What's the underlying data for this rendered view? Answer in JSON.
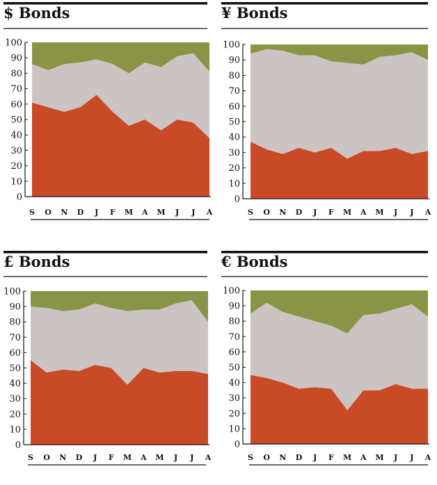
{
  "colors": {
    "series_red": "#c94a27",
    "series_grey": "#cbc4c2",
    "series_green": "#899447",
    "ink": "#111111"
  },
  "chart_data": [
    {
      "type": "area",
      "stacked": true,
      "title": "$ Bonds",
      "categories": [
        "S",
        "O",
        "N",
        "D",
        "J",
        "F",
        "M",
        "A",
        "M",
        "J",
        "J",
        "A"
      ],
      "ylim": [
        0,
        100
      ],
      "yticks": [
        0,
        10,
        20,
        30,
        40,
        50,
        60,
        70,
        80,
        90,
        100
      ],
      "xlabel": "",
      "ylabel": "",
      "grid": false,
      "legend": "none",
      "series": [
        {
          "name": "red",
          "values": [
            61,
            58,
            55,
            58,
            66,
            55,
            46,
            50,
            43,
            50,
            48,
            38
          ]
        },
        {
          "name": "grey",
          "values": [
            25,
            24,
            31,
            29,
            23,
            31,
            34,
            37,
            41,
            41,
            45,
            43
          ]
        },
        {
          "name": "green",
          "values": [
            14,
            18,
            14,
            13,
            11,
            14,
            20,
            13,
            16,
            9,
            7,
            19
          ]
        }
      ]
    },
    {
      "type": "area",
      "stacked": true,
      "title": "¥ Bonds",
      "categories": [
        "S",
        "O",
        "N",
        "D",
        "J",
        "F",
        "M",
        "A",
        "M",
        "J",
        "J",
        "A"
      ],
      "ylim": [
        0,
        100
      ],
      "yticks": [
        0,
        10,
        20,
        30,
        40,
        50,
        60,
        70,
        80,
        90,
        100
      ],
      "xlabel": "",
      "ylabel": "",
      "grid": false,
      "legend": "none",
      "series": [
        {
          "name": "red",
          "values": [
            37,
            32,
            29,
            33,
            30,
            33,
            26,
            31,
            31,
            33,
            29,
            31
          ]
        },
        {
          "name": "grey",
          "values": [
            57,
            65,
            67,
            60,
            63,
            56,
            62,
            56,
            61,
            60,
            66,
            59
          ]
        },
        {
          "name": "green",
          "values": [
            6,
            3,
            4,
            7,
            7,
            11,
            12,
            13,
            8,
            7,
            5,
            10
          ]
        }
      ]
    },
    {
      "type": "area",
      "stacked": true,
      "title": "£ Bonds",
      "categories": [
        "S",
        "O",
        "N",
        "D",
        "J",
        "F",
        "M",
        "A",
        "M",
        "J",
        "J",
        "A"
      ],
      "ylim": [
        0,
        100
      ],
      "yticks": [
        0,
        10,
        20,
        30,
        40,
        50,
        60,
        70,
        80,
        90,
        100
      ],
      "xlabel": "",
      "ylabel": "",
      "grid": false,
      "legend": "none",
      "series": [
        {
          "name": "red",
          "values": [
            55,
            47,
            49,
            48,
            52,
            50,
            39,
            50,
            47,
            48,
            48,
            46
          ]
        },
        {
          "name": "grey",
          "values": [
            35,
            42,
            38,
            40,
            40,
            39,
            48,
            38,
            41,
            44,
            46,
            34
          ]
        },
        {
          "name": "green",
          "values": [
            10,
            11,
            13,
            12,
            8,
            11,
            13,
            12,
            12,
            8,
            6,
            20
          ]
        }
      ]
    },
    {
      "type": "area",
      "stacked": true,
      "title": "€ Bonds",
      "categories": [
        "S",
        "O",
        "N",
        "D",
        "J",
        "F",
        "M",
        "A",
        "M",
        "J",
        "J",
        "A"
      ],
      "ylim": [
        0,
        100
      ],
      "yticks": [
        0,
        10,
        20,
        30,
        40,
        50,
        60,
        70,
        80,
        90,
        100
      ],
      "xlabel": "",
      "ylabel": "",
      "grid": false,
      "legend": "none",
      "series": [
        {
          "name": "red",
          "values": [
            45,
            43,
            40,
            36,
            37,
            36,
            22,
            35,
            35,
            39,
            36,
            36
          ]
        },
        {
          "name": "grey",
          "values": [
            40,
            49,
            46,
            47,
            43,
            41,
            50,
            49,
            50,
            49,
            55,
            47
          ]
        },
        {
          "name": "green",
          "values": [
            15,
            8,
            14,
            17,
            20,
            23,
            28,
            16,
            15,
            12,
            9,
            17
          ]
        }
      ]
    }
  ]
}
